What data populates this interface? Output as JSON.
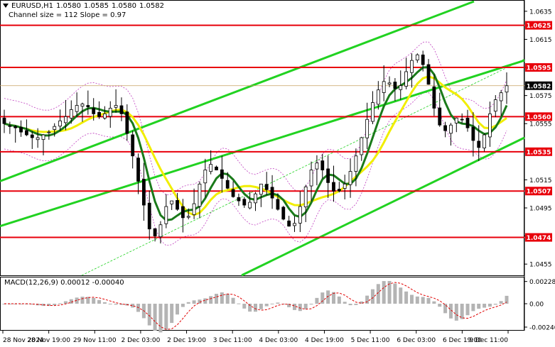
{
  "header": {
    "symbol": "EURUSD,H1",
    "open": "1.0580",
    "high": "1.0585",
    "low": "1.0580",
    "close": "1.0582",
    "channel_info": "Channel size = 112 Slope = 0.97"
  },
  "macd": {
    "label": "MACD(12,26,9) 0.00012 -0.00040"
  },
  "colors": {
    "candle": "#000000",
    "level_line": "#e8000b",
    "level_badge": "#e8000b",
    "current_badge": "#000000",
    "channel": "#21d221",
    "ma_fast": "#1a7a1a",
    "ma_slow": "#f1ee00",
    "envelope": "#c040c0",
    "macd_hist": "#b4b4b4",
    "macd_signal": "#e00000"
  },
  "chart_data": {
    "type": "candlestick",
    "price_axis": {
      "range": [
        1.0447,
        1.0641
      ],
      "ticks": [
        "1.0635",
        "1.0615",
        "1.0595",
        "1.0575",
        "1.0555",
        "1.0535",
        "1.0515",
        "1.0495",
        "1.0475",
        "1.0455"
      ]
    },
    "levels": [
      "1.0625",
      "1.0595",
      "1.0560",
      "1.0535",
      "1.0507",
      "1.0474"
    ],
    "current_price": "1.0582",
    "x_labels": [
      "28 Nov 2024",
      "28 Nov 19:00",
      "29 Nov 11:00",
      "2 Dec 03:00",
      "2 Dec 19:00",
      "3 Dec 11:00",
      "4 Dec 03:00",
      "4 Dec 19:00",
      "5 Dec 11:00",
      "6 Dec 03:00",
      "6 Dec 19:00",
      "9 Dec 11:00"
    ],
    "closes_approx": [
      1.0555,
      1.0553,
      1.0552,
      1.0549,
      1.0547,
      1.0545,
      1.0545,
      1.0547,
      1.0549,
      1.0553,
      1.0557,
      1.056,
      1.0565,
      1.0568,
      1.0569,
      1.0567,
      1.0562,
      1.056,
      1.0562,
      1.0566,
      1.0568,
      1.0562,
      1.0548,
      1.0532,
      1.0514,
      1.0497,
      1.048,
      1.0475,
      1.0483,
      1.0496,
      1.05,
      1.0494,
      1.0488,
      1.0489,
      1.0498,
      1.0512,
      1.0522,
      1.0526,
      1.0522,
      1.0516,
      1.0509,
      1.0503,
      1.05,
      1.0497,
      1.0499,
      1.0505,
      1.0512,
      1.0508,
      1.0502,
      1.0494,
      1.0487,
      1.0482,
      1.0484,
      1.0496,
      1.051,
      1.0522,
      1.0527,
      1.0522,
      1.0513,
      1.0507,
      1.0507,
      1.0512,
      1.0521,
      1.0532,
      1.0545,
      1.0558,
      1.057,
      1.0579,
      1.0585,
      1.0584,
      1.058,
      1.0582,
      1.0592,
      1.06,
      1.0604,
      1.0597,
      1.0583,
      1.0566,
      1.0554,
      1.055,
      1.0554,
      1.0559,
      1.0558,
      1.0552,
      1.0543,
      1.0538,
      1.0547,
      1.0562,
      1.0572,
      1.0577,
      1.0582
    ]
  },
  "macd_data": {
    "ticks": [
      "0.00228",
      "0.00",
      "-0.00240"
    ],
    "range": [
      -0.00262,
      0.00262
    ]
  }
}
